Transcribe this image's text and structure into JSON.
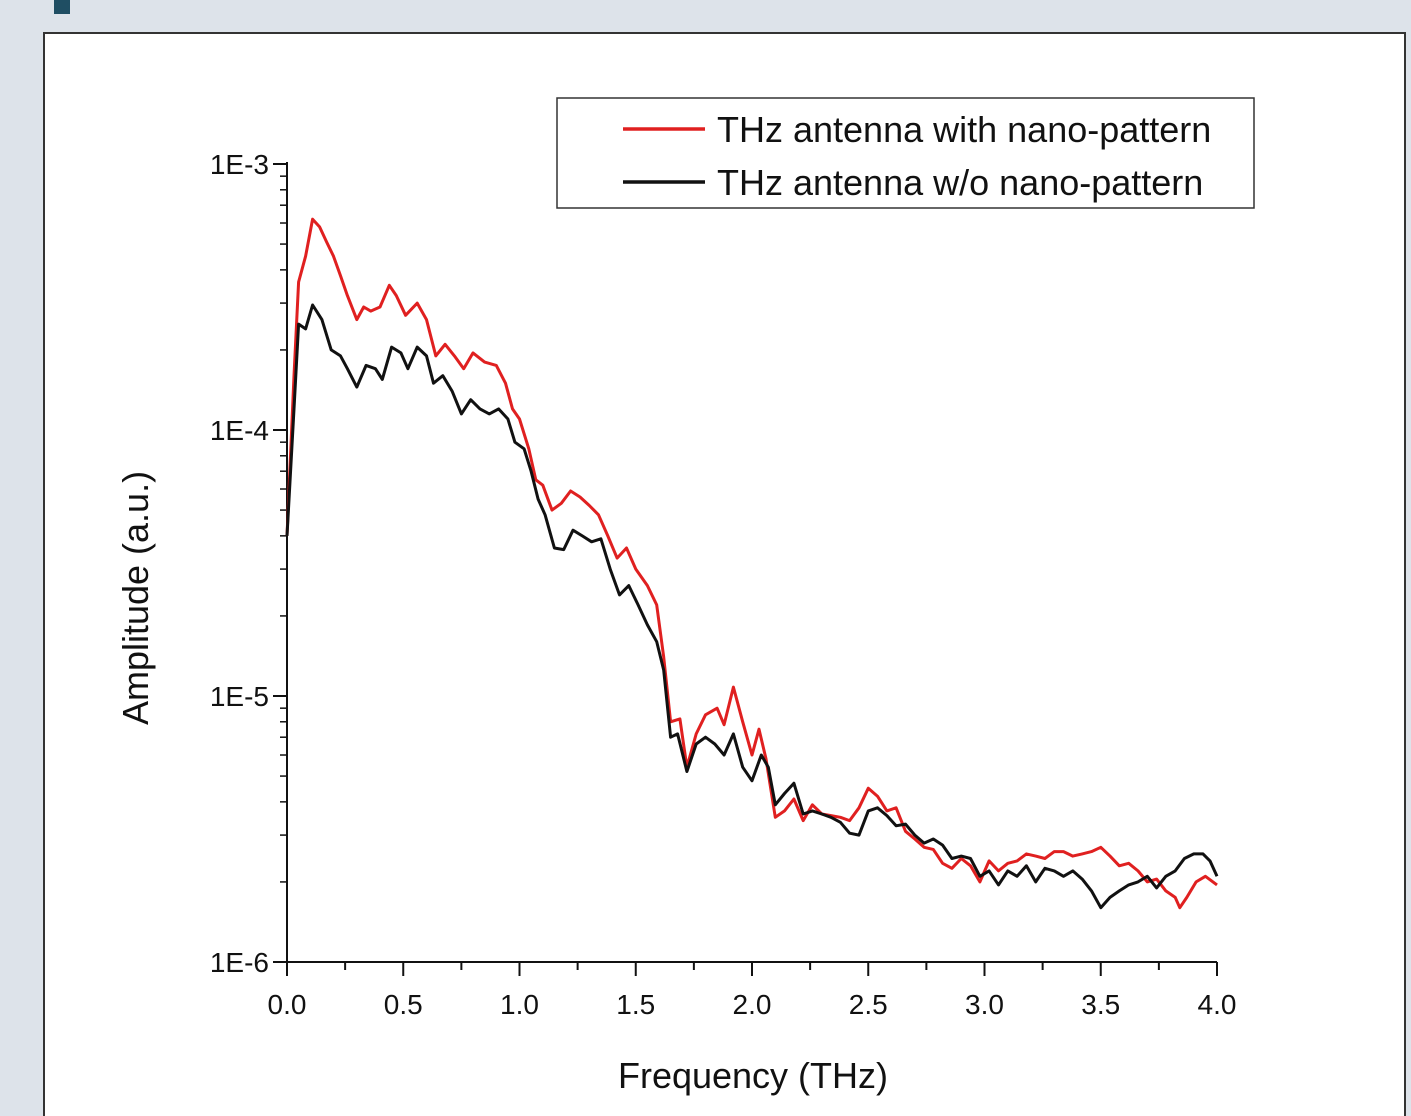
{
  "chart_data": {
    "type": "line",
    "xlabel": "Frequency (THz)",
    "ylabel": "Amplitude (a.u.)",
    "xlim": [
      0.0,
      4.0
    ],
    "ylim": [
      1e-06,
      0.001
    ],
    "y_scale": "log",
    "x_ticks": [
      "0.0",
      "0.5",
      "1.0",
      "1.5",
      "2.0",
      "2.5",
      "3.0",
      "3.5",
      "4.0"
    ],
    "y_ticks": [
      "1E-6",
      "1E-5",
      "1E-4",
      "1E-3"
    ],
    "grid": false,
    "legend_position": "top-right",
    "series": [
      {
        "name": "THz antenna with nano-pattern",
        "color": "#e02020",
        "points": [
          [
            0.0,
            4e-05
          ],
          [
            0.03,
            0.00016
          ],
          [
            0.05,
            0.00036
          ],
          [
            0.08,
            0.00045
          ],
          [
            0.11,
            0.00062
          ],
          [
            0.14,
            0.00058
          ],
          [
            0.17,
            0.00051
          ],
          [
            0.2,
            0.00045
          ],
          [
            0.23,
            0.00038
          ],
          [
            0.26,
            0.00032
          ],
          [
            0.3,
            0.00026
          ],
          [
            0.33,
            0.00029
          ],
          [
            0.36,
            0.00028
          ],
          [
            0.4,
            0.00029
          ],
          [
            0.44,
            0.00035
          ],
          [
            0.47,
            0.00032
          ],
          [
            0.51,
            0.00027
          ],
          [
            0.56,
            0.0003
          ],
          [
            0.6,
            0.00026
          ],
          [
            0.64,
            0.00019
          ],
          [
            0.68,
            0.00021
          ],
          [
            0.72,
            0.00019
          ],
          [
            0.76,
            0.00017
          ],
          [
            0.8,
            0.000195
          ],
          [
            0.85,
            0.00018
          ],
          [
            0.9,
            0.000175
          ],
          [
            0.94,
            0.00015
          ],
          [
            0.97,
            0.00012
          ],
          [
            1.0,
            0.00011
          ],
          [
            1.04,
            8.5e-05
          ],
          [
            1.07,
            6.5e-05
          ],
          [
            1.1,
            6.2e-05
          ],
          [
            1.14,
            5e-05
          ],
          [
            1.18,
            5.3e-05
          ],
          [
            1.22,
            5.9e-05
          ],
          [
            1.26,
            5.6e-05
          ],
          [
            1.3,
            5.2e-05
          ],
          [
            1.34,
            4.8e-05
          ],
          [
            1.38,
            4e-05
          ],
          [
            1.42,
            3.3e-05
          ],
          [
            1.46,
            3.6e-05
          ],
          [
            1.5,
            3e-05
          ],
          [
            1.55,
            2.6e-05
          ],
          [
            1.59,
            2.2e-05
          ],
          [
            1.62,
            1.4e-05
          ],
          [
            1.65,
            8e-06
          ],
          [
            1.69,
            8.2e-06
          ],
          [
            1.72,
            5.4e-06
          ],
          [
            1.76,
            7.2e-06
          ],
          [
            1.8,
            8.5e-06
          ],
          [
            1.85,
            9e-06
          ],
          [
            1.88,
            7.8e-06
          ],
          [
            1.92,
            1.08e-05
          ],
          [
            1.96,
            8e-06
          ],
          [
            2.0,
            6e-06
          ],
          [
            2.03,
            7.5e-06
          ],
          [
            2.06,
            5.8e-06
          ],
          [
            2.1,
            3.5e-06
          ],
          [
            2.14,
            3.7e-06
          ],
          [
            2.18,
            4.1e-06
          ],
          [
            2.22,
            3.4e-06
          ],
          [
            2.26,
            3.9e-06
          ],
          [
            2.3,
            3.6e-06
          ],
          [
            2.34,
            3.55e-06
          ],
          [
            2.38,
            3.5e-06
          ],
          [
            2.42,
            3.4e-06
          ],
          [
            2.46,
            3.8e-06
          ],
          [
            2.5,
            4.5e-06
          ],
          [
            2.54,
            4.2e-06
          ],
          [
            2.58,
            3.7e-06
          ],
          [
            2.62,
            3.8e-06
          ],
          [
            2.66,
            3.1e-06
          ],
          [
            2.7,
            2.9e-06
          ],
          [
            2.74,
            2.7e-06
          ],
          [
            2.78,
            2.65e-06
          ],
          [
            2.82,
            2.35e-06
          ],
          [
            2.86,
            2.25e-06
          ],
          [
            2.9,
            2.45e-06
          ],
          [
            2.94,
            2.3e-06
          ],
          [
            2.98,
            2e-06
          ],
          [
            3.02,
            2.4e-06
          ],
          [
            3.06,
            2.2e-06
          ],
          [
            3.1,
            2.35e-06
          ],
          [
            3.14,
            2.4e-06
          ],
          [
            3.18,
            2.55e-06
          ],
          [
            3.22,
            2.5e-06
          ],
          [
            3.26,
            2.45e-06
          ],
          [
            3.3,
            2.6e-06
          ],
          [
            3.34,
            2.6e-06
          ],
          [
            3.38,
            2.5e-06
          ],
          [
            3.42,
            2.55e-06
          ],
          [
            3.46,
            2.6e-06
          ],
          [
            3.5,
            2.7e-06
          ],
          [
            3.54,
            2.5e-06
          ],
          [
            3.58,
            2.3e-06
          ],
          [
            3.62,
            2.35e-06
          ],
          [
            3.66,
            2.2e-06
          ],
          [
            3.7,
            2e-06
          ],
          [
            3.74,
            2.05e-06
          ],
          [
            3.78,
            1.85e-06
          ],
          [
            3.82,
            1.75e-06
          ],
          [
            3.84,
            1.6e-06
          ],
          [
            3.87,
            1.75e-06
          ],
          [
            3.91,
            2e-06
          ],
          [
            3.95,
            2.1e-06
          ],
          [
            4.0,
            1.95e-06
          ]
        ]
      },
      {
        "name": "THz antenna w/o nano-pattern",
        "color": "#111111",
        "points": [
          [
            0.0,
            4e-05
          ],
          [
            0.03,
            0.00012
          ],
          [
            0.05,
            0.00025
          ],
          [
            0.08,
            0.00024
          ],
          [
            0.11,
            0.000295
          ],
          [
            0.15,
            0.00026
          ],
          [
            0.19,
            0.0002
          ],
          [
            0.23,
            0.00019
          ],
          [
            0.26,
            0.00017
          ],
          [
            0.3,
            0.000145
          ],
          [
            0.34,
            0.000175
          ],
          [
            0.38,
            0.00017
          ],
          [
            0.41,
            0.000155
          ],
          [
            0.45,
            0.000205
          ],
          [
            0.49,
            0.000195
          ],
          [
            0.52,
            0.00017
          ],
          [
            0.56,
            0.000205
          ],
          [
            0.6,
            0.00019
          ],
          [
            0.63,
            0.00015
          ],
          [
            0.67,
            0.00016
          ],
          [
            0.71,
            0.00014
          ],
          [
            0.75,
            0.000115
          ],
          [
            0.79,
            0.00013
          ],
          [
            0.83,
            0.00012
          ],
          [
            0.87,
            0.000115
          ],
          [
            0.91,
            0.00012
          ],
          [
            0.95,
            0.00011
          ],
          [
            0.98,
            9e-05
          ],
          [
            1.02,
            8.5e-05
          ],
          [
            1.05,
            7e-05
          ],
          [
            1.08,
            5.5e-05
          ],
          [
            1.11,
            4.8e-05
          ],
          [
            1.15,
            3.6e-05
          ],
          [
            1.19,
            3.55e-05
          ],
          [
            1.23,
            4.2e-05
          ],
          [
            1.27,
            4e-05
          ],
          [
            1.31,
            3.8e-05
          ],
          [
            1.35,
            3.9e-05
          ],
          [
            1.39,
            3e-05
          ],
          [
            1.43,
            2.4e-05
          ],
          [
            1.47,
            2.6e-05
          ],
          [
            1.51,
            2.2e-05
          ],
          [
            1.55,
            1.85e-05
          ],
          [
            1.59,
            1.6e-05
          ],
          [
            1.62,
            1.25e-05
          ],
          [
            1.65,
            7e-06
          ],
          [
            1.68,
            7.2e-06
          ],
          [
            1.72,
            5.2e-06
          ],
          [
            1.76,
            6.6e-06
          ],
          [
            1.8,
            7e-06
          ],
          [
            1.84,
            6.6e-06
          ],
          [
            1.88,
            6e-06
          ],
          [
            1.92,
            7.2e-06
          ],
          [
            1.96,
            5.4e-06
          ],
          [
            2.0,
            4.8e-06
          ],
          [
            2.04,
            6e-06
          ],
          [
            2.07,
            5.4e-06
          ],
          [
            2.1,
            3.9e-06
          ],
          [
            2.14,
            4.3e-06
          ],
          [
            2.18,
            4.7e-06
          ],
          [
            2.22,
            3.6e-06
          ],
          [
            2.26,
            3.7e-06
          ],
          [
            2.3,
            3.6e-06
          ],
          [
            2.34,
            3.5e-06
          ],
          [
            2.38,
            3.35e-06
          ],
          [
            2.42,
            3.05e-06
          ],
          [
            2.46,
            3e-06
          ],
          [
            2.5,
            3.7e-06
          ],
          [
            2.54,
            3.8e-06
          ],
          [
            2.58,
            3.55e-06
          ],
          [
            2.62,
            3.25e-06
          ],
          [
            2.66,
            3.3e-06
          ],
          [
            2.7,
            3e-06
          ],
          [
            2.74,
            2.8e-06
          ],
          [
            2.78,
            2.9e-06
          ],
          [
            2.82,
            2.75e-06
          ],
          [
            2.86,
            2.45e-06
          ],
          [
            2.9,
            2.5e-06
          ],
          [
            2.94,
            2.45e-06
          ],
          [
            2.98,
            2.1e-06
          ],
          [
            3.02,
            2.2e-06
          ],
          [
            3.06,
            1.95e-06
          ],
          [
            3.1,
            2.2e-06
          ],
          [
            3.14,
            2.1e-06
          ],
          [
            3.18,
            2.3e-06
          ],
          [
            3.22,
            2e-06
          ],
          [
            3.26,
            2.25e-06
          ],
          [
            3.3,
            2.2e-06
          ],
          [
            3.34,
            2.1e-06
          ],
          [
            3.38,
            2.2e-06
          ],
          [
            3.42,
            2.05e-06
          ],
          [
            3.46,
            1.85e-06
          ],
          [
            3.5,
            1.6e-06
          ],
          [
            3.54,
            1.75e-06
          ],
          [
            3.58,
            1.85e-06
          ],
          [
            3.62,
            1.95e-06
          ],
          [
            3.66,
            2e-06
          ],
          [
            3.7,
            2.1e-06
          ],
          [
            3.74,
            1.9e-06
          ],
          [
            3.78,
            2.1e-06
          ],
          [
            3.82,
            2.2e-06
          ],
          [
            3.86,
            2.45e-06
          ],
          [
            3.9,
            2.55e-06
          ],
          [
            3.94,
            2.55e-06
          ],
          [
            3.97,
            2.4e-06
          ],
          [
            4.0,
            2.1e-06
          ]
        ]
      }
    ]
  }
}
